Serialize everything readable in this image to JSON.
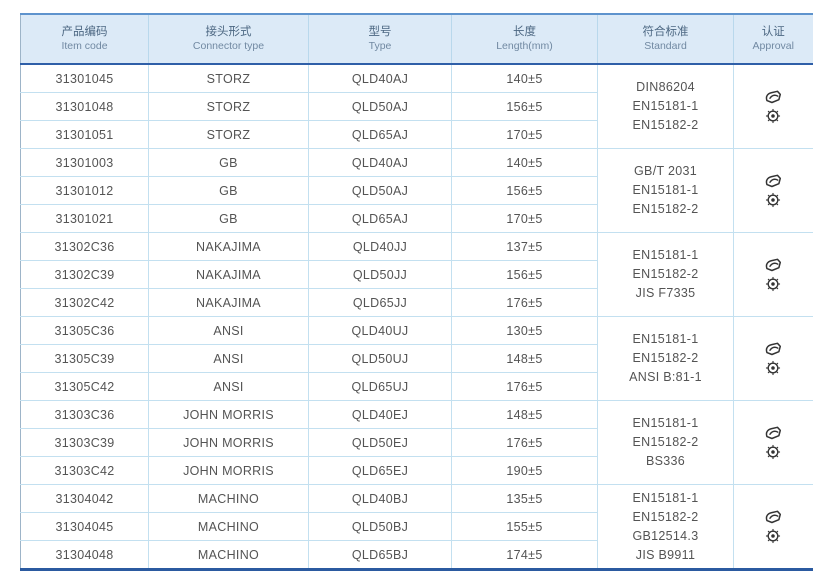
{
  "table": {
    "columns": [
      {
        "zh": "产品编码",
        "en": "Item code"
      },
      {
        "zh": "接头形式",
        "en": "Connector type"
      },
      {
        "zh": "型号",
        "en": "Type"
      },
      {
        "zh": "长度",
        "en": "Length(mm)"
      },
      {
        "zh": "符合标准",
        "en": "Standard"
      },
      {
        "zh": "认证",
        "en": "Approval"
      }
    ],
    "groups": [
      {
        "rows": [
          {
            "item_code": "31301045",
            "connector_type": "STORZ",
            "type": "QLD40AJ",
            "length": "140±5"
          },
          {
            "item_code": "31301048",
            "connector_type": "STORZ",
            "type": "QLD50AJ",
            "length": "156±5"
          },
          {
            "item_code": "31301051",
            "connector_type": "STORZ",
            "type": "QLD65AJ",
            "length": "170±5"
          }
        ],
        "standards": [
          "DIN86204",
          "EN15181-1",
          "EN15182-2"
        ],
        "approvals": [
          "approval-logo-icon",
          "wheelmark-seal-icon"
        ]
      },
      {
        "rows": [
          {
            "item_code": "31301003",
            "connector_type": "GB",
            "type": "QLD40AJ",
            "length": "140±5"
          },
          {
            "item_code": "31301012",
            "connector_type": "GB",
            "type": "QLD50AJ",
            "length": "156±5"
          },
          {
            "item_code": "31301021",
            "connector_type": "GB",
            "type": "QLD65AJ",
            "length": "170±5"
          }
        ],
        "standards": [
          "GB/T 2031",
          "EN15181-1",
          "EN15182-2"
        ],
        "approvals": [
          "approval-logo-icon",
          "wheelmark-seal-icon"
        ]
      },
      {
        "rows": [
          {
            "item_code": "31302C36",
            "connector_type": "NAKAJIMA",
            "type": "QLD40JJ",
            "length": "137±5"
          },
          {
            "item_code": "31302C39",
            "connector_type": "NAKAJIMA",
            "type": "QLD50JJ",
            "length": "156±5"
          },
          {
            "item_code": "31302C42",
            "connector_type": "NAKAJIMA",
            "type": "QLD65JJ",
            "length": "176±5"
          }
        ],
        "standards": [
          "EN15181-1",
          "EN15182-2",
          "JIS F7335"
        ],
        "approvals": [
          "approval-logo-icon",
          "wheelmark-seal-icon"
        ]
      },
      {
        "rows": [
          {
            "item_code": "31305C36",
            "connector_type": "ANSI",
            "type": "QLD40UJ",
            "length": "130±5"
          },
          {
            "item_code": "31305C39",
            "connector_type": "ANSI",
            "type": "QLD50UJ",
            "length": "148±5"
          },
          {
            "item_code": "31305C42",
            "connector_type": "ANSI",
            "type": "QLD65UJ",
            "length": "176±5"
          }
        ],
        "standards": [
          "EN15181-1",
          "EN15182-2",
          "ANSI B:81-1"
        ],
        "approvals": [
          "approval-logo-icon",
          "wheelmark-seal-icon"
        ]
      },
      {
        "rows": [
          {
            "item_code": "31303C36",
            "connector_type": "JOHN MORRIS",
            "type": "QLD40EJ",
            "length": "148±5"
          },
          {
            "item_code": "31303C39",
            "connector_type": "JOHN MORRIS",
            "type": "QLD50EJ",
            "length": "176±5"
          },
          {
            "item_code": "31303C42",
            "connector_type": "JOHN MORRIS",
            "type": "QLD65EJ",
            "length": "190±5"
          }
        ],
        "standards": [
          "EN15181-1",
          "EN15182-2",
          "BS336"
        ],
        "approvals": [
          "approval-logo-icon",
          "wheelmark-seal-icon"
        ]
      },
      {
        "rows": [
          {
            "item_code": "31304042",
            "connector_type": "MACHINO",
            "type": "QLD40BJ",
            "length": "135±5"
          },
          {
            "item_code": "31304045",
            "connector_type": "MACHINO",
            "type": "QLD50BJ",
            "length": "155±5"
          },
          {
            "item_code": "31304048",
            "connector_type": "MACHINO",
            "type": "QLD65BJ",
            "length": "174±5"
          }
        ],
        "standards": [
          "EN15181-1",
          "EN15182-2",
          "GB12514.3",
          "JIS B9911"
        ],
        "approvals": [
          "approval-logo-icon",
          "wheelmark-seal-icon"
        ]
      }
    ],
    "colors": {
      "header_bg": "#dceaf7",
      "header_text": "#4c6782",
      "rule_dark": "#2b5aa0",
      "rule_light": "#c3e0f0",
      "cell_text": "#545454",
      "icon_color": "#333333"
    }
  }
}
